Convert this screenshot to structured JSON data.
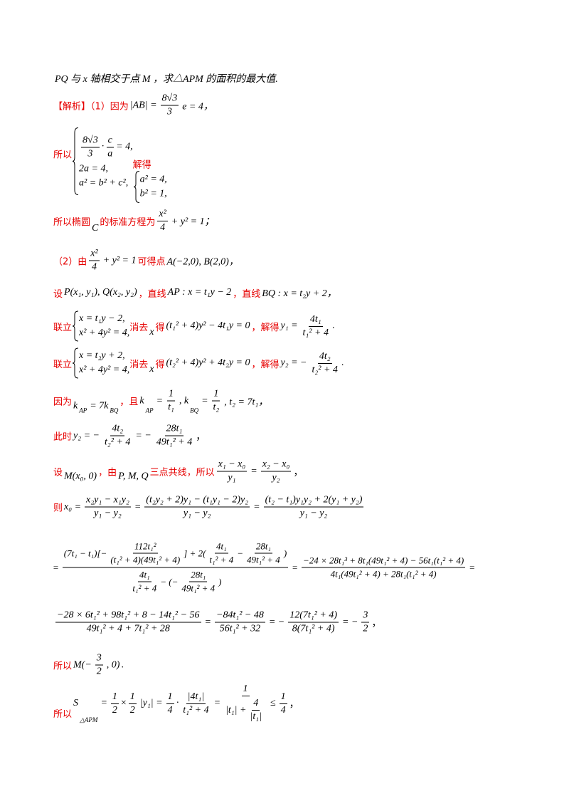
{
  "lines": [
    [
      "PQ 与 x 轴相交于点 M ，求△APM 的面积的最大值."
    ],
    [
      "【解析】（1）因为",
      "|AB| =",
      "8√3",
      "3",
      "e = 4，"
    ],
    [
      "所以",
      "8√3",
      "3",
      "·",
      "c",
      "a",
      "= 4,",
      "2a = 4,",
      "a² = b² + c²,",
      "解得",
      "a² = 4,",
      "b² = 1,"
    ],
    [
      "所以椭圆",
      "C",
      "的标准方程为",
      "x²",
      "4",
      "+ y² = 1；"
    ],
    [
      "（2）由",
      "x²",
      "4",
      "+ y² = 1",
      "可得点",
      "A(−2,0), B(2,0)，"
    ],
    [
      "设",
      "P(x₁, y₁), Q(x₂, y₂)",
      "，直线",
      "AP : x = t₁y − 2",
      "，直线",
      "BQ : x = t₂y + 2，"
    ],
    [
      "联立",
      "x = t₁y − 2,",
      "x² + 4y² = 4,",
      "消去",
      "x",
      "得",
      "(t₁² + 4)y² − 4t₁y = 0",
      "，解得",
      "y₁ =",
      "4t₁",
      "t₁² + 4",
      "."
    ],
    [
      "联立",
      "x = t₂y + 2,",
      "x² + 4y² = 4,",
      "消去",
      "x",
      "得",
      "(t₂² + 4)y² + 4t₂y = 0",
      "，解得",
      "y₂ = −",
      "4t₂",
      "t₂² + 4",
      "."
    ],
    [
      "因为",
      "k",
      "AP",
      "= 7k",
      "BQ",
      "，且",
      "k",
      "AP",
      "=",
      "1",
      "t₁",
      ", k",
      "BQ",
      "=",
      "1",
      "t₂",
      ", t₂ = 7t₁，"
    ],
    [
      "此时",
      "y₂ = −",
      "4t₂",
      "t₂² + 4",
      "= −",
      "28t₁",
      "49t₁² + 4",
      "，"
    ],
    [
      "设",
      "M(x₀, 0)",
      "，由",
      "P, M, Q",
      "三点共线，所以",
      "x₁ − x₀",
      "y₁",
      "=",
      "x₂ − x₀",
      "y₂",
      "，"
    ],
    [
      "则",
      "x₀ =",
      "x₂y₁ − x₁y₂",
      "y₁ − y₂",
      "=",
      "(t₂y₂ + 2)y₁ − (t₁y₁ − 2)y₂",
      "y₁ − y₂",
      "=",
      "(t₂ − t₁)y₁y₂ + 2(y₁ + y₂)",
      "y₁ − y₂"
    ],
    [
      "=",
      "(7t₁ − t₁)[−",
      "112t₁²",
      "(t₁² + 4)(49t₁² + 4)",
      "] + 2(",
      "4t₁",
      "t₁² + 4",
      "−",
      "28t₁",
      "49t₁² + 4",
      ")",
      "4t₁",
      "t₁² + 4",
      "− (−",
      "28t₁",
      "49t₁² + 4",
      ")",
      "=",
      "−24 × 28t₁³ + 8t₁(49t₁² + 4) − 56t₁(t₁² + 4)",
      "4t₁(49t₁² + 4) + 28t₁(t₁² + 4)",
      "="
    ],
    [
      "−28 × 6t₁² + 98t₁² + 8 − 14t₁² − 56",
      "49t₁² + 4 + 7t₁² + 28",
      "=",
      "−84t₁² − 48",
      "56t₁² + 32",
      "= −",
      "12(7t₁² + 4)",
      "8(7t₁² + 4)",
      "= −",
      "3",
      "2",
      "，"
    ],
    [
      "所以",
      "M(−",
      "3",
      "2",
      ", 0)",
      "."
    ],
    [
      "所以",
      "S",
      "△APM",
      "=",
      "1",
      "2",
      "×",
      "1",
      "2",
      "|y₁| =",
      "1",
      "4",
      "·",
      "|4t₁|",
      "t₁² + 4",
      "=",
      "1",
      "|t₁| +",
      "4",
      "|t₁|",
      "≤",
      "1",
      "4",
      "，"
    ]
  ]
}
